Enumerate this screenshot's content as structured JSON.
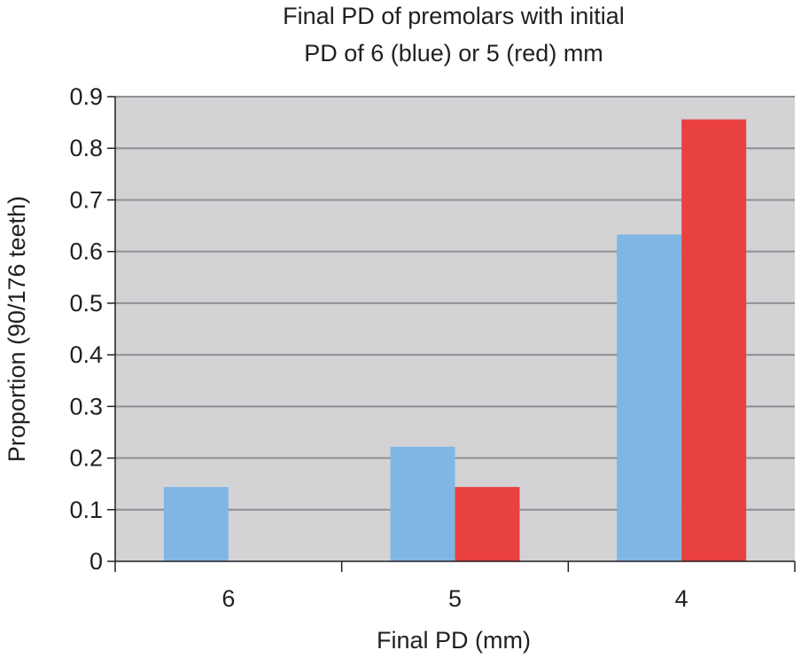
{
  "chart_data": {
    "type": "bar",
    "title": [
      "Final  PD of premolars with initial",
      "PD of 6 (blue) or 5 (red) mm"
    ],
    "xlabel": "Final PD (mm)",
    "ylabel": "Proportion (90/176 teeth)",
    "categories": [
      "6",
      "5",
      "4"
    ],
    "ylim": [
      0,
      0.9
    ],
    "yticks": [
      "0",
      "0.1",
      "0.2",
      "0.3",
      "0.4",
      "0.5",
      "0.6",
      "0.7",
      "0.8",
      "0.9"
    ],
    "grid": true,
    "series": [
      {
        "name": "initial PD 6 mm (blue)",
        "color": "#80b6e3",
        "values": [
          0.144,
          0.222,
          0.633
        ]
      },
      {
        "name": "initial PD 5 mm (red)",
        "color": "#e84140",
        "values": [
          0,
          0.144,
          0.856
        ]
      }
    ],
    "plot_background": "#d3d3d5",
    "gridline_color": "#8f8f93",
    "axis_color": "#231f20"
  }
}
